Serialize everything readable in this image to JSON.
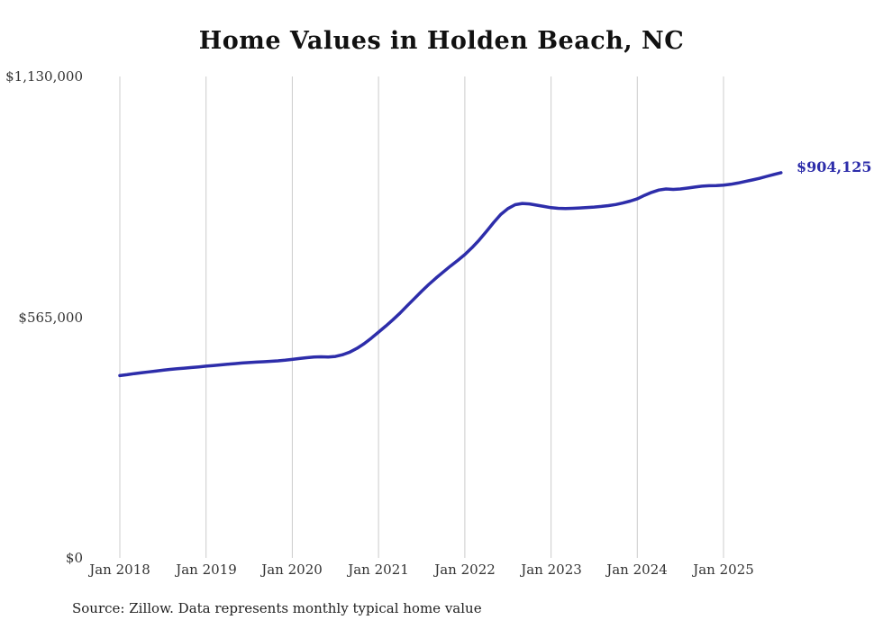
{
  "title": "Home Values in Holden Beach, NC",
  "end_label": "$904,125",
  "source_note": "Source: Zillow. Data represents monthly typical home value",
  "colors": {
    "line": "#2d2daa",
    "gridline": "#cccccc",
    "background": "#ffffff"
  },
  "chart_data": {
    "type": "line",
    "title": "Home Values in Holden Beach, NC",
    "series_name": "Monthly typical home value (USD)",
    "x_start": "2018-01",
    "x_end": "2025-09",
    "x_interval": "monthly",
    "x_tick_labels": [
      "Jan 2018",
      "Jan 2019",
      "Jan 2020",
      "Jan 2021",
      "Jan 2022",
      "Jan 2023",
      "Jan 2024",
      "Jan 2025"
    ],
    "y_tick_labels": [
      "$1,130,000",
      "$565,000",
      "$0"
    ],
    "ylim": [
      0,
      1130000
    ],
    "grid": "vertical-only",
    "legend": "none",
    "last_value_label": "$904,125",
    "values": [
      428000,
      430000,
      432500,
      434500,
      436500,
      438500,
      440500,
      442500,
      444000,
      445500,
      447000,
      448500,
      450000,
      451500,
      453000,
      454500,
      456000,
      457500,
      458500,
      459500,
      460500,
      461500,
      462500,
      464000,
      466000,
      468000,
      470000,
      471500,
      472000,
      471500,
      473000,
      477000,
      483000,
      492000,
      503000,
      516000,
      530000,
      544000,
      559000,
      575000,
      592000,
      609000,
      626000,
      642000,
      657000,
      671000,
      685000,
      698000,
      712000,
      728000,
      746000,
      766000,
      787000,
      806000,
      820000,
      829000,
      832000,
      831000,
      828000,
      825000,
      822000,
      820500,
      820000,
      820500,
      821500,
      822500,
      823500,
      825000,
      827000,
      829500,
      833000,
      837500,
      843000,
      851000,
      858000,
      863500,
      866000,
      865000,
      866000,
      868000,
      870500,
      872500,
      873500,
      874000,
      875000,
      877000,
      880000,
      883500,
      887000,
      891000,
      895500,
      900000,
      904125
    ]
  }
}
